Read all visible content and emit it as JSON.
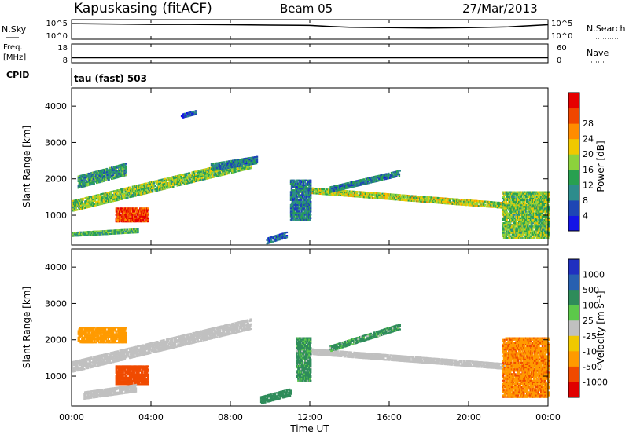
{
  "header": {
    "station": "Kapuskasing (fitACF)",
    "beam": "Beam 05",
    "date": "27/Mar/2013"
  },
  "panels": {
    "nsky_label": "N.Sky",
    "nsearch_label": "N.Search",
    "freq_label_1": "Freq.",
    "freq_label_2": "[MHz]",
    "nave_label": "Nave",
    "cpid_label": "CPID",
    "cpid_value": "tau (fast) 503",
    "noise_ticks_left": [
      "10^5",
      "10^0"
    ],
    "noise_ticks_right": [
      "10^5",
      "10^0"
    ],
    "freq_ticks_left": [
      "18",
      "8"
    ],
    "freq_ticks_right": [
      "60",
      "0"
    ]
  },
  "axes": {
    "ylabel": "Slant Range [km]",
    "xlabel": "Time UT",
    "yticks": [
      "1000",
      "2000",
      "3000",
      "4000"
    ],
    "xticks": [
      "00:00",
      "04:00",
      "08:00",
      "12:00",
      "16:00",
      "20:00",
      "00:00"
    ]
  },
  "colorbars": {
    "power": {
      "label": "Power [dB]",
      "ticks": [
        "4",
        "8",
        "12",
        "16",
        "20",
        "24",
        "28"
      ],
      "colors": [
        "#1414e6",
        "#1e46b4",
        "#2d8c8c",
        "#28a050",
        "#8cd23c",
        "#f0c800",
        "#ff8c00",
        "#f04600",
        "#e60000"
      ]
    },
    "velocity": {
      "label": "Velocity [m s⁻¹]",
      "ticks": [
        "1000",
        "500",
        "100",
        "25",
        "-25",
        "-100",
        "-500",
        "-1000"
      ],
      "colors": [
        "#2030c0",
        "#2860b0",
        "#2e8c5a",
        "#5cc84a",
        "#c0c0c0",
        "#f0c800",
        "#ff9a00",
        "#f04a00",
        "#e00000"
      ]
    }
  },
  "chart_data": [
    {
      "type": "line",
      "name": "noise",
      "x_range_hours": [
        0,
        24
      ],
      "ylim_log": [
        0,
        5
      ],
      "x": [
        0,
        2,
        4,
        6,
        8,
        10,
        12,
        13,
        14,
        16,
        18,
        20,
        22,
        24
      ],
      "y": [
        4.1,
        4.0,
        3.9,
        3.9,
        3.8,
        3.7,
        3.6,
        3.3,
        3.1,
        3.0,
        2.9,
        3.0,
        3.2,
        3.8
      ]
    },
    {
      "type": "line",
      "name": "frequency",
      "ylim": [
        8,
        18
      ],
      "x": [
        0,
        4,
        8,
        12,
        16,
        20,
        24
      ],
      "y": [
        10.5,
        10.5,
        10.5,
        10.5,
        10.5,
        10.5,
        10.5
      ]
    },
    {
      "type": "heatmap",
      "name": "power",
      "xlim_hours": [
        0,
        24
      ],
      "ylim_km": [
        180,
        4500
      ],
      "color_scale_db": [
        0,
        30
      ],
      "regions": [
        {
          "t0": 0.0,
          "t1": 9.0,
          "r0": 1150,
          "r1": 0,
          "rr0": 1300,
          "rr1": 2480,
          "db": 14
        },
        {
          "t0": 0.3,
          "t1": 2.7,
          "r0": 1950,
          "r1": 2300,
          "db": 10
        },
        {
          "t0": 2.2,
          "t1": 3.8,
          "r0": 850,
          "r1": 1250,
          "db": 26
        },
        {
          "t0": 0.0,
          "t1": 3.3,
          "r0": 500,
          "r1": 600,
          "db": 12
        },
        {
          "t0": 7.0,
          "t1": 9.3,
          "r0": 2350,
          "r1": 2550,
          "db": 8
        },
        {
          "t0": 9.8,
          "t1": 10.8,
          "r0": 330,
          "r1": 500,
          "db": 6
        },
        {
          "t0": 11.3,
          "t1": 24.0,
          "r0": 1750,
          "r1": 1220,
          "db": 16
        },
        {
          "t0": 11.0,
          "t1": 12.0,
          "r0": 900,
          "r1": 2000,
          "db": 8
        },
        {
          "t0": 13.0,
          "t1": 16.5,
          "r0": 1750,
          "r1": 2200,
          "db": 8
        },
        {
          "t0": 21.7,
          "t1": 24.0,
          "r0": 400,
          "r1": 1700,
          "db": 14
        },
        {
          "t0": 5.5,
          "t1": 6.2,
          "r0": 3750,
          "r1": 3850,
          "db": 5
        }
      ]
    },
    {
      "type": "heatmap",
      "name": "velocity",
      "xlim_hours": [
        0,
        24
      ],
      "ylim_km": [
        180,
        4500
      ],
      "regions": [
        {
          "t0": 0.0,
          "t1": 9.0,
          "r0": 1150,
          "r1": 0,
          "rr0": 1300,
          "rr1": 2480,
          "v": 0
        },
        {
          "t0": 0.3,
          "t1": 2.7,
          "r0": 1950,
          "r1": 2400,
          "v": -300
        },
        {
          "t0": 2.2,
          "t1": 3.8,
          "r0": 800,
          "r1": 1300,
          "v": -700
        },
        {
          "t0": 0.6,
          "t1": 3.2,
          "r0": 500,
          "r1": 700,
          "v": 0
        },
        {
          "t0": 11.3,
          "t1": 24.0,
          "r0": 1750,
          "r1": 1220,
          "v": 0
        },
        {
          "t0": 11.3,
          "t1": 12.0,
          "r0": 900,
          "r1": 2100,
          "v": 200
        },
        {
          "t0": 13.0,
          "t1": 16.5,
          "r0": 1800,
          "r1": 2400,
          "v": 200
        },
        {
          "t0": 21.7,
          "t1": 24.0,
          "r0": 450,
          "r1": 2100,
          "v": -400
        },
        {
          "t0": 9.5,
          "t1": 11.0,
          "r0": 380,
          "r1": 600,
          "v": 300
        }
      ]
    }
  ]
}
